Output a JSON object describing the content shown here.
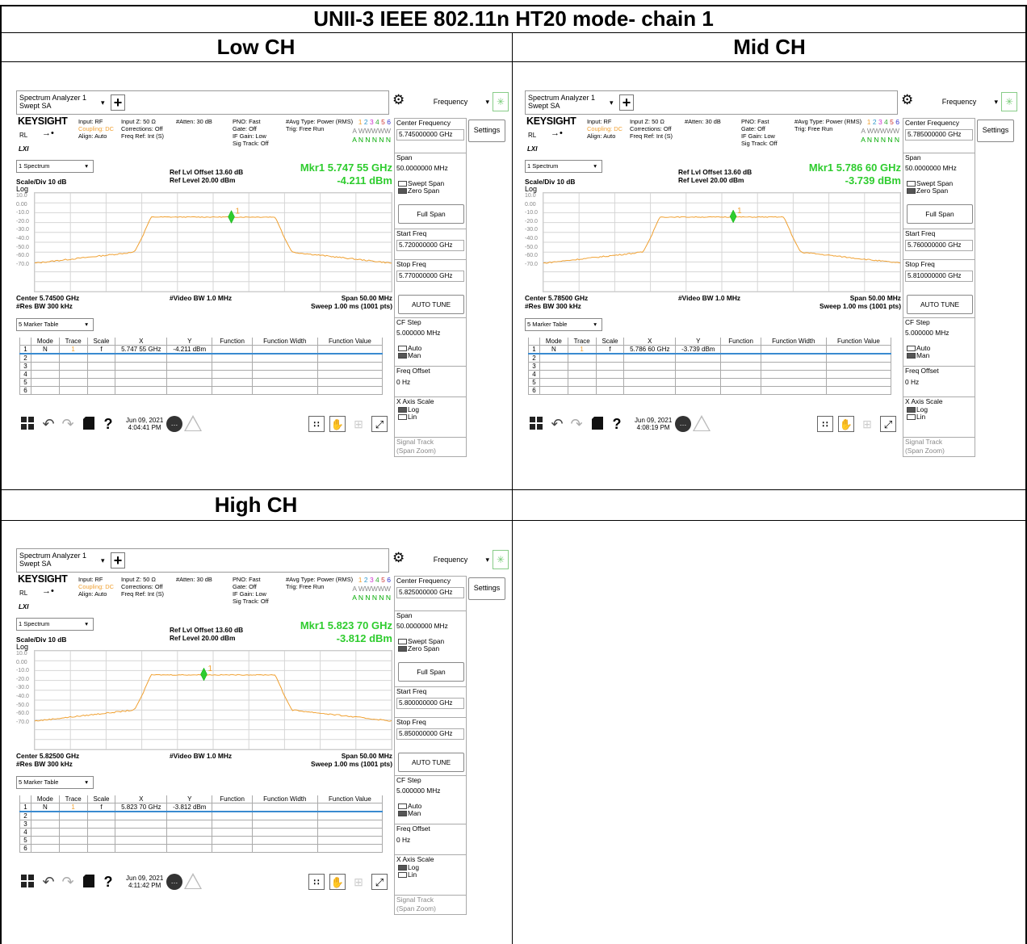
{
  "header": {
    "title": "UNII-3 IEEE 802.11n HT20 mode- chain 1",
    "low": "Low CH",
    "mid": "Mid CH",
    "high": "High CH"
  },
  "colors": {
    "trace": "#f0a030",
    "marker": "#2ecc2e",
    "accent": "#3a8bd0"
  },
  "common": {
    "app_title_1": "Spectrum Analyzer 1",
    "app_title_2": "Swept SA",
    "plus": "+",
    "gear": "⚙",
    "freq_menu": "Frequency",
    "dropdown": "▾",
    "spinner": "✳",
    "settings": "Settings",
    "brand": "KEYSIGHT",
    "rl": "RL",
    "arrow": "→•",
    "lxi": "LXI",
    "input": "Input: RF",
    "coupling": "Coupling: DC",
    "align": "Align: Auto",
    "inputz": "Input Z: 50 Ω",
    "corr": "Corrections: Off",
    "freqref": "Freq Ref: Int (S)",
    "atten": "#Atten: 30 dB",
    "pno": "PNO: Fast",
    "gate": "Gate: Off",
    "ifgain": "IF Gain: Low",
    "sigtrack": "Sig Track: Off",
    "avg": "#Avg Type: Power (RMS)",
    "trig": "Trig: Free Run",
    "trc_nums": [
      "1",
      "2",
      "3",
      "4",
      "5",
      "6"
    ],
    "trc_type": "A WWWWW",
    "trc_det": "A N N N N N",
    "view": "1 Spectrum",
    "ref_offset": "Ref Lvl Offset 13.60 dB",
    "ref_level": "Ref Level 20.00 dBm",
    "scale": "Scale/Div 10 dB",
    "log": "Log",
    "yticks": [
      "10.0",
      "0.00",
      "-10.0",
      "-20.0",
      "-30.0",
      "-40.0",
      "-50.0",
      "-60.0",
      "-70.0"
    ],
    "vbw": "#Video BW 1.0 MHz",
    "span": "Span 50.00 MHz",
    "rbw": "#Res BW 300 kHz",
    "sweep": "Sweep 1.00 ms (1001 pts)",
    "table_view": "5 Marker Table",
    "cols": [
      "",
      "Mode",
      "Trace",
      "Scale",
      "X",
      "Y",
      "Function",
      "Function Width",
      "Function Value"
    ],
    "rows_idx": [
      "2",
      "3",
      "4",
      "5",
      "6"
    ],
    "row1": {
      "idx": "1",
      "mode": "N",
      "trace": "1",
      "scale": "f"
    },
    "cf_label": "Center Frequency",
    "span_label": "Span",
    "span_val": "50.0000000 MHz",
    "swept_span": "Swept Span",
    "zero_span": "Zero Span",
    "full_span": "Full Span",
    "start_label": "Start Freq",
    "stop_label": "Stop Freq",
    "auto_tune": "AUTO TUNE",
    "cfstep_label": "CF Step",
    "cfstep_val": "5.000000 MHz",
    "auto": "Auto",
    "man": "Man",
    "foffset_label": "Freq Offset",
    "foffset_val": "0 Hz",
    "xaxis_label": "X Axis Scale",
    "log_opt": "Log",
    "lin_opt": "Lin",
    "sigtrack_label": "Signal Track",
    "sigtrack_sub": "(Span Zoom)",
    "date": "Jun 09, 2021",
    "help": "?",
    "bubble": "…"
  },
  "panels": [
    {
      "center": "Center 5.74500 GHz",
      "cf": "5.745000000 GHz",
      "start": "5.720000000 GHz",
      "stop": "5.770000000 GHz",
      "mkr_freq": "Mkr1  5.747 55 GHz",
      "mkr_amp": "-4.211 dBm",
      "x": "5.747 55 GHz",
      "y": "-4.211 dBm",
      "time": "4:04:41 PM",
      "marker_freq_ghz": 5.74755,
      "marker_dbm": -4.211,
      "center_ghz": 5.745
    },
    {
      "center": "Center 5.78500 GHz",
      "cf": "5.785000000 GHz",
      "start": "5.760000000 GHz",
      "stop": "5.810000000 GHz",
      "mkr_freq": "Mkr1  5.786 60 GHz",
      "mkr_amp": "-3.739 dBm",
      "x": "5.786 60 GHz",
      "y": "-3.739 dBm",
      "time": "4:08:19 PM",
      "marker_freq_ghz": 5.7866,
      "marker_dbm": -3.739,
      "center_ghz": 5.785
    },
    {
      "center": "Center 5.82500 GHz",
      "cf": "5.825000000 GHz",
      "start": "5.800000000 GHz",
      "stop": "5.850000000 GHz",
      "mkr_freq": "Mkr1  5.823 70 GHz",
      "mkr_amp": "-3.812 dBm",
      "x": "5.823 70 GHz",
      "y": "-3.812 dBm",
      "time": "4:11:42 PM",
      "marker_freq_ghz": 5.8237,
      "marker_dbm": -3.812,
      "center_ghz": 5.825
    }
  ]
}
